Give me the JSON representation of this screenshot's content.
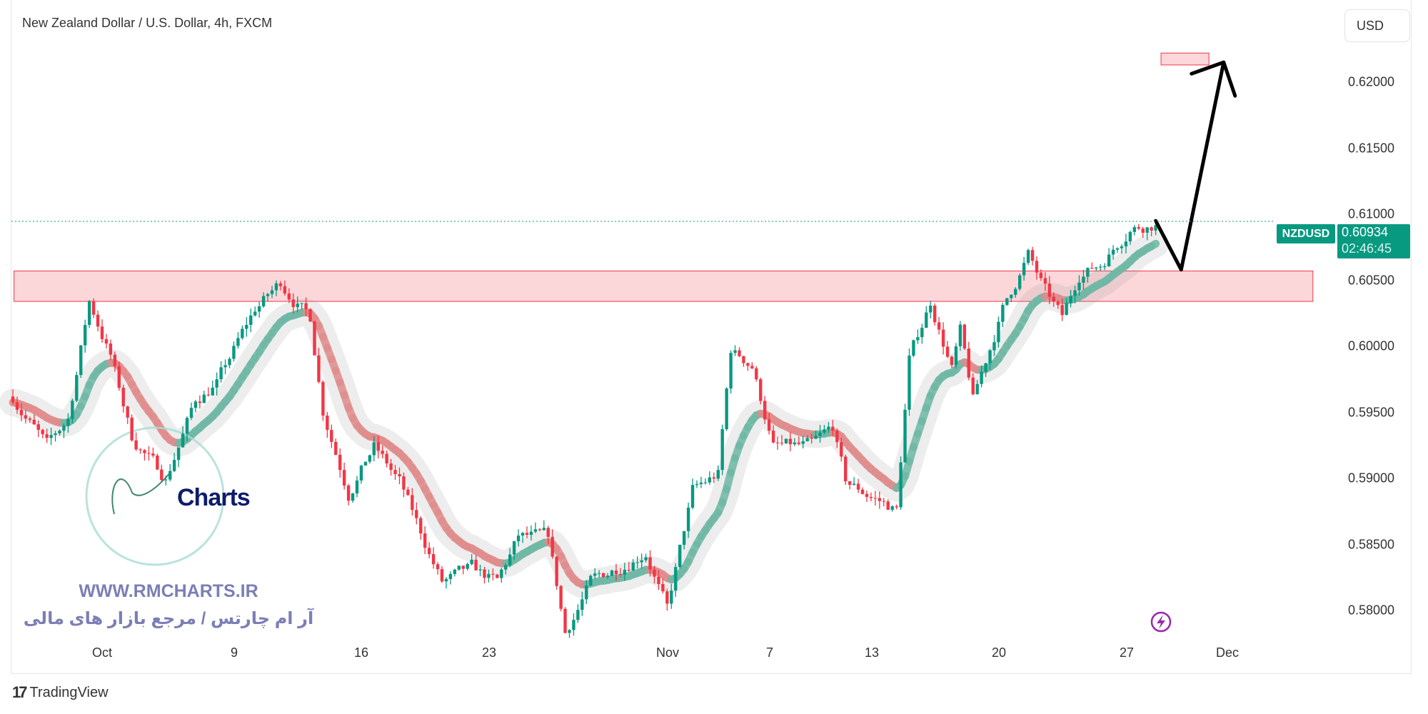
{
  "header": {
    "title": "New Zealand Dollar / U.S. Dollar, 4h, FXCM",
    "currency_button": "USD"
  },
  "price_axis": {
    "labels": [
      "0.62000",
      "0.61500",
      "0.61000",
      "0.60500",
      "0.60000",
      "0.59500",
      "0.59000",
      "0.58500",
      "0.58000"
    ]
  },
  "time_axis": {
    "labels": [
      "Oct",
      "9",
      "16",
      "23",
      "Nov",
      "7",
      "13",
      "20",
      "27",
      "Dec"
    ]
  },
  "last_price": {
    "symbol": "NZDUSD",
    "price": "0.60934",
    "countdown": "02:46:45",
    "color": "#089981"
  },
  "watermark": {
    "logo_text": "Charts",
    "url": "WWW.RMCHARTS.IR",
    "tagline": "آر ام چارتس / مرجع بازار های مالی"
  },
  "footer": {
    "brand": "TradingView"
  },
  "icons": {
    "alert": "lightning-icon"
  },
  "colors": {
    "up": "#089981",
    "down": "#f23645",
    "zone": "#f8c8cc",
    "ma_up": "#6fb8a5",
    "ma_down": "#e08c8c"
  },
  "chart_data": {
    "type": "candlestick",
    "symbol": "NZDUSD",
    "timeframe": "4h",
    "ylim": [
      0.5775,
      0.6235
    ],
    "price_path": [
      [
        "2023-09-26 12:00",
        0.5962
      ],
      [
        "2023-09-27 20:00",
        0.5924
      ],
      [
        "2023-09-28 16:00",
        0.5945
      ],
      [
        "2023-09-29 12:00",
        0.6034
      ],
      [
        "2023-10-02 08:00",
        0.5993
      ],
      [
        "2023-10-03 04:00",
        0.5931
      ],
      [
        "2023-10-04 12:00",
        0.59
      ],
      [
        "2023-10-05 16:00",
        0.5959
      ],
      [
        "2023-10-06 12:00",
        0.5972
      ],
      [
        "2023-10-10 00:00",
        0.6028
      ],
      [
        "2023-10-11 00:00",
        0.6048
      ],
      [
        "2023-10-12 04:00",
        0.6021
      ],
      [
        "2023-10-12 16:00",
        0.5952
      ],
      [
        "2023-10-13 16:00",
        0.589
      ],
      [
        "2023-10-16 16:00",
        0.5924
      ],
      [
        "2023-10-17 16:00",
        0.5897
      ],
      [
        "2023-10-19 08:00",
        0.5821
      ],
      [
        "2023-10-20 12:00",
        0.5831
      ],
      [
        "2023-10-23 12:00",
        0.5821
      ],
      [
        "2023-10-24 08:00",
        0.5855
      ],
      [
        "2023-10-25 12:00",
        0.5855
      ],
      [
        "2023-10-26 04:00",
        0.5783
      ],
      [
        "2023-10-27 04:00",
        0.5821
      ],
      [
        "2023-10-31 08:00",
        0.5845
      ],
      [
        "2023-11-01 04:00",
        0.58
      ],
      [
        "2023-11-02 04:00",
        0.589
      ],
      [
        "2023-11-03 04:00",
        0.5903
      ],
      [
        "2023-11-03 16:00",
        0.5997
      ],
      [
        "2023-11-06 12:00",
        0.5986
      ],
      [
        "2023-11-07 08:00",
        0.5924
      ],
      [
        "2023-11-08 20:00",
        0.5924
      ],
      [
        "2023-11-09 16:00",
        0.5938
      ],
      [
        "2023-11-10 04:00",
        0.5897
      ],
      [
        "2023-11-14 04:00",
        0.5876
      ],
      [
        "2023-11-14 16:00",
        0.599
      ],
      [
        "2023-11-15 12:00",
        0.6034
      ],
      [
        "2023-11-16 08:00",
        0.5983
      ],
      [
        "2023-11-16 16:00",
        0.601
      ],
      [
        "2023-11-17 04:00",
        0.5959
      ],
      [
        "2023-11-20 08:00",
        0.6028
      ],
      [
        "2023-11-21 08:00",
        0.6069
      ],
      [
        "2023-11-22 00:00",
        0.6041
      ],
      [
        "2023-11-22 16:00",
        0.6021
      ],
      [
        "2023-11-23 08:00",
        0.6055
      ],
      [
        "2023-11-24 04:00",
        0.6062
      ],
      [
        "2023-11-27 08:00",
        0.609
      ],
      [
        "2023-11-28 08:00",
        0.6093
      ]
    ],
    "zones": [
      {
        "name": "support zone",
        "from": "2023-09-28",
        "to": "2023-12-01",
        "low": 0.6034,
        "high": 0.6057
      },
      {
        "name": "target zone",
        "from": "2023-11-30",
        "to": "2023-12-05",
        "low": 0.6213,
        "high": 0.6222
      }
    ],
    "projection": [
      [
        "2023-11-28 08:00",
        0.6095
      ],
      [
        "2023-11-29 08:00",
        0.6058
      ],
      [
        "2023-12-01 00:00",
        0.6215
      ]
    ]
  }
}
